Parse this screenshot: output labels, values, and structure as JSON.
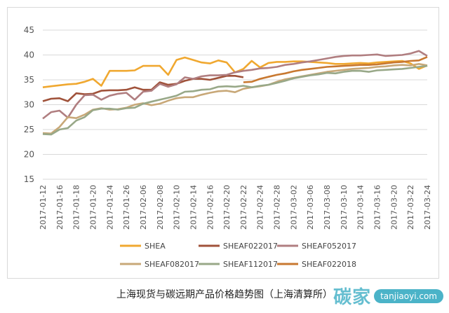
{
  "caption": "上海现货与碳远期产品价格趋势图（上海清算所）",
  "watermark": {
    "mark": "碳家",
    "url": "tanjiaoyi.com"
  },
  "chart_data": {
    "type": "line",
    "ylim": [
      15,
      45
    ],
    "yticks": [
      15,
      20,
      25,
      30,
      35,
      40,
      45
    ],
    "grid": true,
    "legend_position": "bottom",
    "x": [
      "2017-01-12",
      "2017-01-13",
      "2017-01-16",
      "2017-01-17",
      "2017-01-18",
      "2017-01-19",
      "2017-01-20",
      "2017-01-23",
      "2017-01-24",
      "2017-01-25",
      "2017-01-26",
      "2017-02-03",
      "2017-02-06",
      "2017-02-07",
      "2017-02-08",
      "2017-02-09",
      "2017-02-10",
      "2017-02-13",
      "2017-02-14",
      "2017-02-15",
      "2017-02-16",
      "2017-02-17",
      "2017-02-20",
      "2017-02-21",
      "2017-02-22",
      "2017-02-23",
      "2017-02-24",
      "2017-02-27",
      "2017-02-28",
      "2017-03-01",
      "2017-03-02",
      "2017-03-03",
      "2017-03-06",
      "2017-03-07",
      "2017-03-08",
      "2017-03-09",
      "2017-03-10",
      "2017-03-13",
      "2017-03-14",
      "2017-03-15",
      "2017-03-16",
      "2017-03-17",
      "2017-03-20",
      "2017-03-21",
      "2017-03-22",
      "2017-03-23",
      "2017-03-24"
    ],
    "xtick_labels": [
      "2017-01-12",
      "2017-01-16",
      "2017-01-18",
      "2017-01-20",
      "2017-01-24",
      "2017-01-26",
      "2017-02-06",
      "2017-02-08",
      "2017-02-10",
      "2017-02-14",
      "2017-02-16",
      "2017-02-20",
      "2017-02-22",
      "2017-02-24",
      "2017-02-28",
      "2017-03-02",
      "2017-03-06",
      "2017-03-08",
      "2017-03-10",
      "2017-03-14",
      "2017-03-16",
      "2017-03-20",
      "2017-03-22",
      "2017-03-24"
    ],
    "series": [
      {
        "name": "SHEA",
        "color": "#f0a830",
        "values": [
          33.5,
          33.7,
          33.9,
          34.1,
          34.2,
          34.6,
          35.2,
          33.8,
          36.8,
          36.8,
          36.8,
          36.9,
          37.8,
          37.8,
          37.8,
          36.0,
          39.0,
          39.5,
          39.0,
          38.5,
          38.3,
          38.9,
          38.5,
          36.5,
          37.2,
          38.8,
          37.5,
          38.4,
          38.6,
          38.6,
          38.7,
          38.7,
          38.6,
          38.5,
          38.4,
          38.2,
          38.2,
          38.3,
          38.4,
          38.3,
          38.5,
          38.6,
          38.7,
          38.8,
          38.3,
          37.2,
          37.9
        ]
      },
      {
        "name": "SHEAF022017",
        "color": "#a0523a",
        "values": [
          30.7,
          31.2,
          31.3,
          30.7,
          32.3,
          32.1,
          32.2,
          32.8,
          32.9,
          32.9,
          33.0,
          33.5,
          33.0,
          33.0,
          34.5,
          34.0,
          34.2,
          34.8,
          35.2,
          35.2,
          35.0,
          35.4,
          35.8,
          35.8,
          35.5,
          null,
          null,
          null,
          null,
          null,
          null,
          null,
          null,
          null,
          null,
          null,
          null,
          null,
          null,
          null,
          null,
          null,
          null,
          null,
          null,
          null,
          null
        ]
      },
      {
        "name": "SHEAF052017",
        "color": "#b07e80",
        "values": [
          27.2,
          28.5,
          28.8,
          27.4,
          30.0,
          31.9,
          32.0,
          31.0,
          31.8,
          32.2,
          32.4,
          31.0,
          32.6,
          32.8,
          34.2,
          33.6,
          34.1,
          35.5,
          35.2,
          35.7,
          35.9,
          35.9,
          36.0,
          36.5,
          36.8,
          37.0,
          37.3,
          37.4,
          37.6,
          38.0,
          38.2,
          38.5,
          38.7,
          39.0,
          39.3,
          39.6,
          39.8,
          39.9,
          39.9,
          40.0,
          40.1,
          39.8,
          39.9,
          40.0,
          40.3,
          40.8,
          39.8
        ]
      },
      {
        "name": "SHEAF082017",
        "color": "#c8a878",
        "values": [
          24.3,
          24.2,
          25.5,
          27.5,
          27.3,
          28.0,
          29.0,
          29.3,
          29.0,
          29.1,
          29.4,
          30.0,
          30.3,
          29.9,
          30.2,
          30.8,
          31.3,
          31.5,
          31.5,
          32.0,
          32.4,
          32.7,
          32.8,
          32.5,
          33.2,
          33.5,
          33.7,
          34.0,
          34.6,
          35.1,
          35.4,
          35.7,
          36.0,
          36.3,
          36.6,
          36.8,
          37.0,
          37.2,
          37.3,
          37.4,
          37.6,
          37.7,
          37.9,
          38.0,
          37.9,
          38.2,
          37.9
        ]
      },
      {
        "name": "SHEAF112017",
        "color": "#98a888",
        "values": [
          24.1,
          24.0,
          25.0,
          25.3,
          26.8,
          27.5,
          28.9,
          29.2,
          29.2,
          29.0,
          29.3,
          29.4,
          30.2,
          30.6,
          31.0,
          31.4,
          31.8,
          32.6,
          32.7,
          33.0,
          33.1,
          33.6,
          33.7,
          33.6,
          33.8,
          33.5,
          33.8,
          34.0,
          34.4,
          34.8,
          35.3,
          35.6,
          35.9,
          36.1,
          36.4,
          36.3,
          36.6,
          36.8,
          36.8,
          36.6,
          36.9,
          37.0,
          37.1,
          37.2,
          37.4,
          37.6,
          37.8
        ]
      },
      {
        "name": "SHEAF022018",
        "color": "#c87830",
        "values": [
          null,
          null,
          null,
          null,
          null,
          null,
          null,
          null,
          null,
          null,
          null,
          null,
          null,
          null,
          null,
          null,
          null,
          null,
          null,
          null,
          null,
          null,
          null,
          null,
          34.5,
          34.6,
          35.2,
          35.6,
          36.0,
          36.3,
          36.7,
          37.0,
          37.2,
          37.4,
          37.6,
          37.7,
          37.8,
          37.9,
          38.0,
          38.0,
          38.1,
          38.3,
          38.5,
          38.6,
          38.8,
          38.9,
          39.6
        ]
      }
    ]
  }
}
